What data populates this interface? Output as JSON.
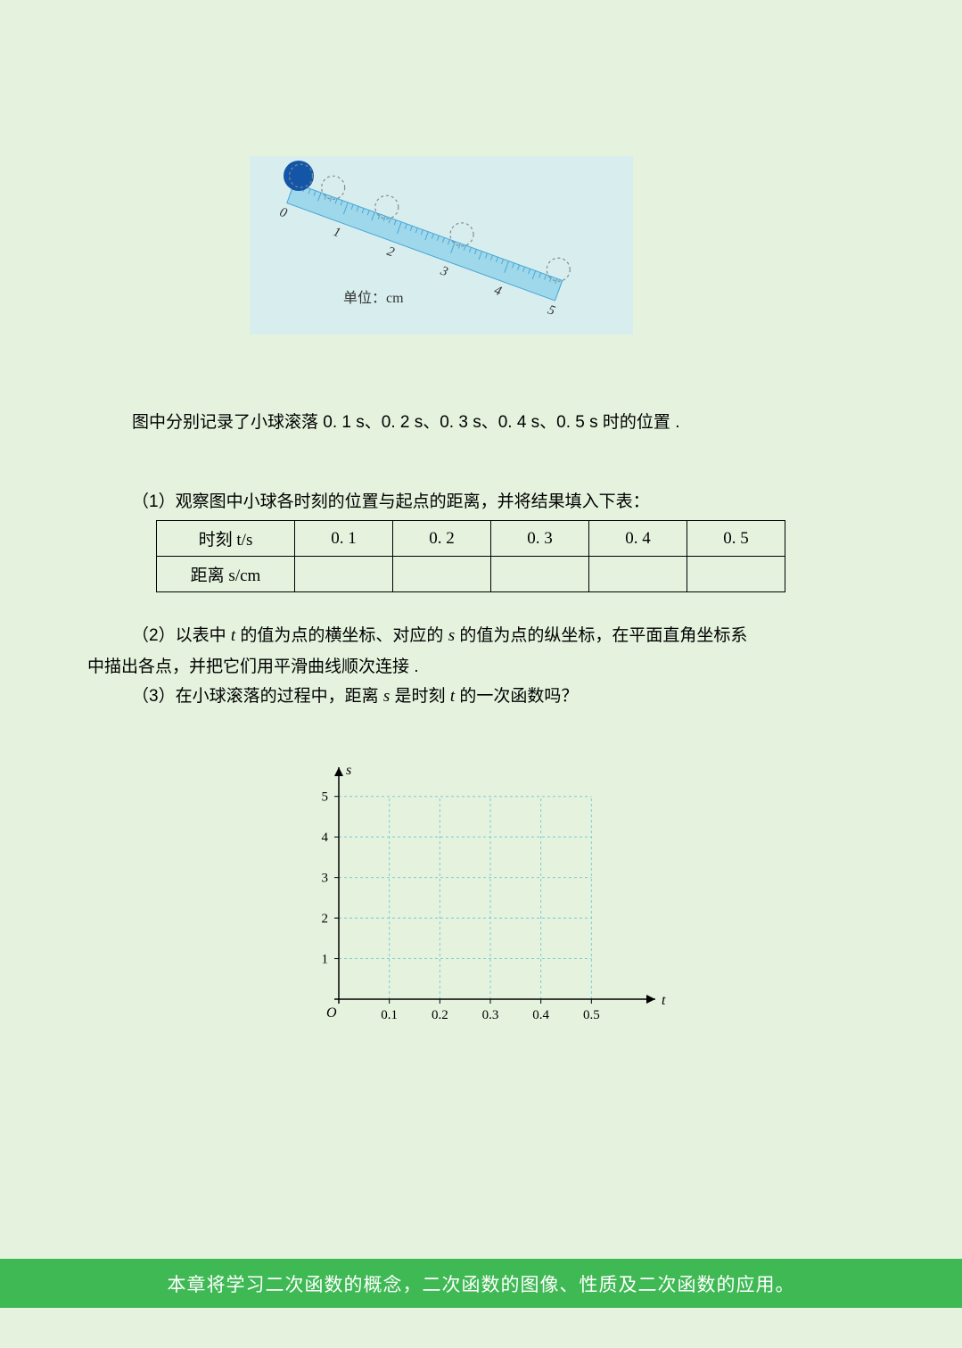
{
  "diagram1": {
    "background": "#d8eeee",
    "ruler_color": "#4aa8d8",
    "ball_color": "#1356a8",
    "dashed_color": "#888",
    "unit_label": "单位：cm",
    "ruler_ticks": [
      "0",
      "1",
      "2",
      "3",
      "4",
      "5"
    ],
    "ball_positions": [
      0,
      0.2,
      0.8,
      1.8,
      3.2,
      5.0
    ]
  },
  "intro": "图中分别记录了小球滚落 0. 1 s、0. 2 s、0. 3 s、0. 4 s、0. 5 s 时的位置 .",
  "q1": "（1）观察图中小球各时刻的位置与起点的距离，并将结果填入下表：",
  "table": {
    "row1_header": "时刻 t/s",
    "row2_header": "距离 s/cm",
    "columns": [
      "0. 1",
      "0. 2",
      "0. 3",
      "0. 4",
      "0. 5"
    ],
    "values": [
      "",
      "",
      "",
      "",
      ""
    ],
    "border_color": "#000000"
  },
  "q2_prefix": "（2）以表中 ",
  "q2_t": "t",
  "q2_mid1": " 的值为点的横坐标、对应的 ",
  "q2_s": "s",
  "q2_mid2": " 的值为点的纵坐标，在平面直角坐标系",
  "q2_line2": "中描出各点，并把它们用平滑曲线顺次连接 .",
  "q3_prefix": "（3）在小球滚落的过程中，距离 ",
  "q3_s": "s",
  "q3_mid": " 是时刻 ",
  "q3_t": "t",
  "q3_suffix": " 的一次函数吗？",
  "chart": {
    "axis_color": "#000000",
    "grid_color": "#7fc9d9",
    "grid_dash": "3,3",
    "background": "transparent",
    "x_label": "t",
    "y_label": "s",
    "origin_label": "O",
    "x_ticks": [
      "0.1",
      "0.2",
      "0.3",
      "0.4",
      "0.5"
    ],
    "y_ticks": [
      "1",
      "2",
      "3",
      "4",
      "5"
    ],
    "xlim": [
      0,
      0.6
    ],
    "ylim": [
      0,
      5.5
    ],
    "tick_fontsize": 15,
    "label_fontsize": 16
  },
  "footer": "本章将学习二次函数的概念，二次函数的图像、性质及二次函数的应用。",
  "footer_bg": "#3fb954",
  "footer_color": "#ffffff"
}
